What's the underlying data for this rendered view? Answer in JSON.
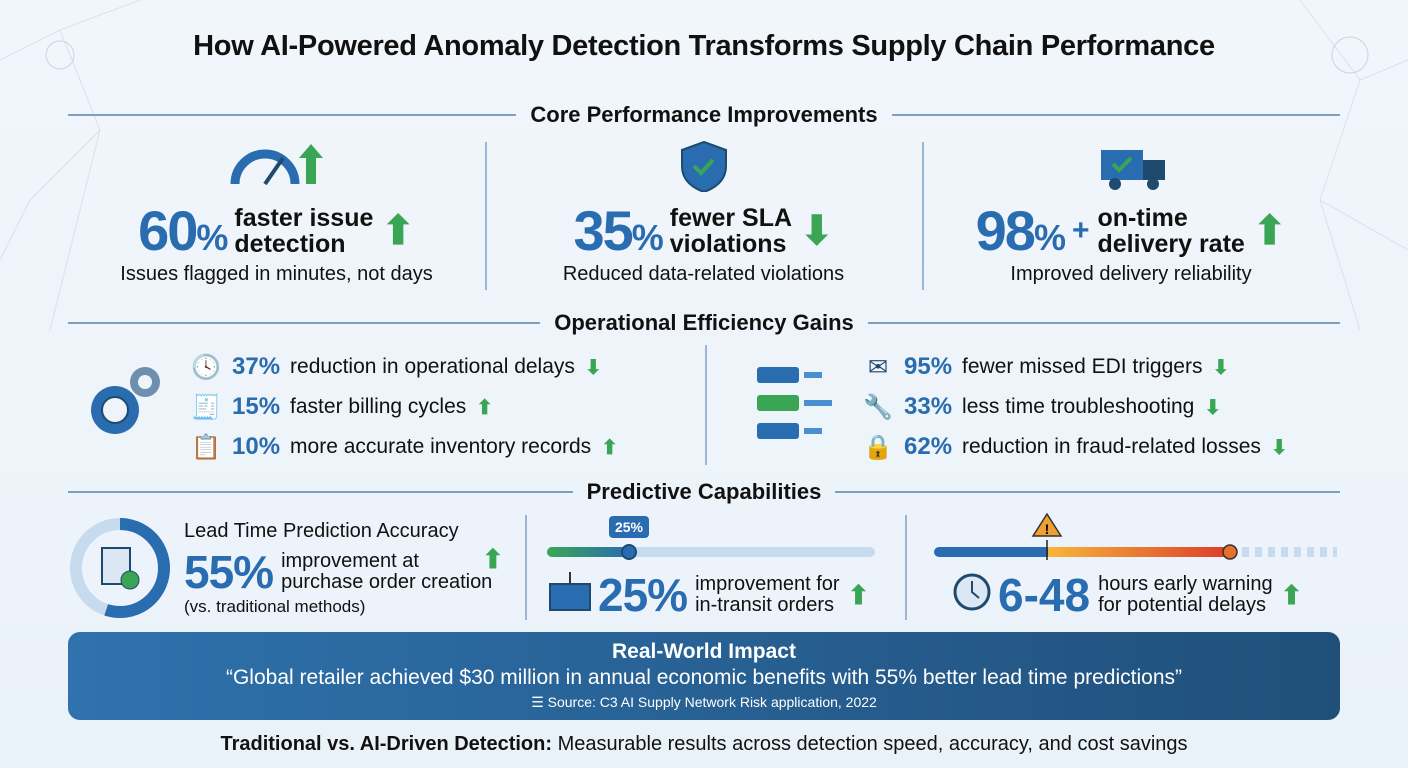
{
  "title": "How AI-Powered Anomaly Detection Transforms Supply Chain Performance",
  "colors": {
    "accent": "#2a6cb0",
    "up": "#3aa655",
    "warning": "#f0a030",
    "banner": "#2f72ad"
  },
  "core": {
    "heading": "Core Performance Improvements",
    "cards": [
      {
        "icon": "speedometer-icon",
        "value": "60",
        "unit": "%",
        "label1": "faster issue",
        "label2": "detection",
        "trend": "up",
        "sub": "Issues flagged in minutes, not days"
      },
      {
        "icon": "shield-check-icon",
        "value": "35",
        "unit": "%",
        "label1": "fewer SLA",
        "label2": "violations",
        "trend": "down",
        "sub": "Reduced data-related violations"
      },
      {
        "icon": "delivery-truck-icon",
        "value": "98",
        "unit": "%",
        "plus": "+",
        "label1": "on-time",
        "label2": "delivery rate",
        "trend": "up",
        "sub": "Improved delivery reliability"
      }
    ]
  },
  "efficiency": {
    "heading": "Operational Efficiency Gains",
    "left": [
      {
        "icon": "clock-icon",
        "value": "37%",
        "text": "reduction in operational delays",
        "trend": "down"
      },
      {
        "icon": "invoice-icon",
        "value": "15%",
        "text": "faster billing cycles",
        "trend": "up"
      },
      {
        "icon": "clipboard-search-icon",
        "value": "10%",
        "text": "more accurate inventory records",
        "trend": "up"
      }
    ],
    "right": [
      {
        "icon": "mail-warning-icon",
        "value": "95%",
        "text": "fewer missed EDI triggers",
        "trend": "down"
      },
      {
        "icon": "tools-clock-icon",
        "value": "33%",
        "text": "less time troubleshooting",
        "trend": "down"
      },
      {
        "icon": "lock-dollar-icon",
        "value": "62%",
        "text": "reduction in fraud-related losses",
        "trend": "down"
      }
    ]
  },
  "predictive": {
    "heading": "Predictive Capabilities",
    "lead": {
      "title": "Lead Time Prediction Accuracy",
      "value": "55%",
      "text1": "improvement at",
      "text2": "purchase order creation",
      "note": "(vs. traditional methods)",
      "ring_percent": 55
    },
    "transit": {
      "badge": "25%",
      "value": "25%",
      "text1": "improvement for",
      "text2": "in-transit orders",
      "progress_percent": 25
    },
    "warning": {
      "value": "6-48",
      "text1": "hours early warning",
      "text2": "for potential delays"
    }
  },
  "impact": {
    "heading": "Real-World Impact",
    "quote": "“Global retailer achieved $30 million in annual economic benefits with 55% better lead time predictions”",
    "source": "Source: C3 AI Supply Network Risk application, 2022"
  },
  "footer": {
    "bold": "Traditional vs. AI-Driven Detection:",
    "text": " Measurable results across detection speed, accuracy, and cost savings"
  }
}
